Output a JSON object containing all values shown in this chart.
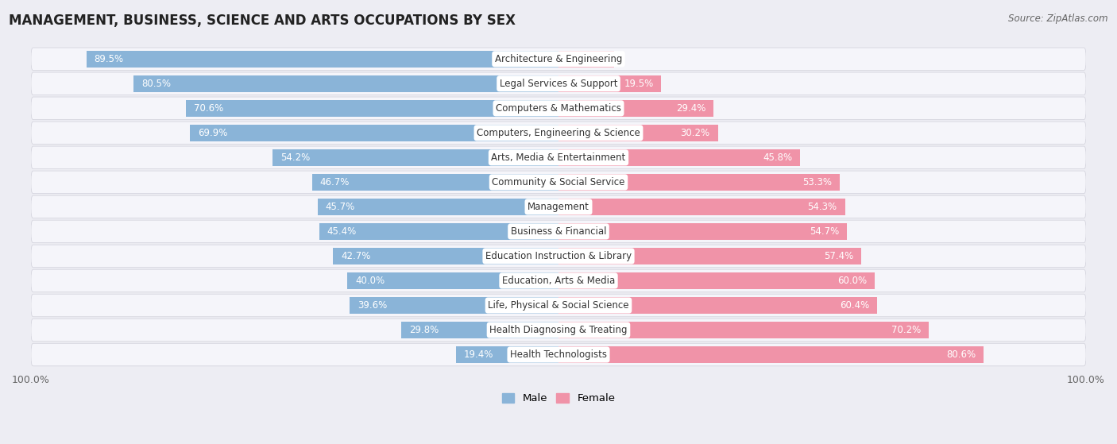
{
  "title": "MANAGEMENT, BUSINESS, SCIENCE AND ARTS OCCUPATIONS BY SEX",
  "source": "Source: ZipAtlas.com",
  "categories": [
    "Architecture & Engineering",
    "Legal Services & Support",
    "Computers & Mathematics",
    "Computers, Engineering & Science",
    "Arts, Media & Entertainment",
    "Community & Social Service",
    "Management",
    "Business & Financial",
    "Education Instruction & Library",
    "Education, Arts & Media",
    "Life, Physical & Social Science",
    "Health Diagnosing & Treating",
    "Health Technologists"
  ],
  "male_pct": [
    89.5,
    80.5,
    70.6,
    69.9,
    54.2,
    46.7,
    45.7,
    45.4,
    42.7,
    40.0,
    39.6,
    29.8,
    19.4
  ],
  "female_pct": [
    10.5,
    19.5,
    29.4,
    30.2,
    45.8,
    53.3,
    54.3,
    54.7,
    57.4,
    60.0,
    60.4,
    70.2,
    80.6
  ],
  "male_color": "#8ab4d8",
  "female_color": "#f093a8",
  "bg_color": "#ededf3",
  "row_bg_color": "#f5f5fa",
  "title_fontsize": 12,
  "source_fontsize": 8.5,
  "label_fontsize": 8.5,
  "pct_fontsize": 8.5,
  "tick_fontsize": 9,
  "legend_fontsize": 9.5
}
